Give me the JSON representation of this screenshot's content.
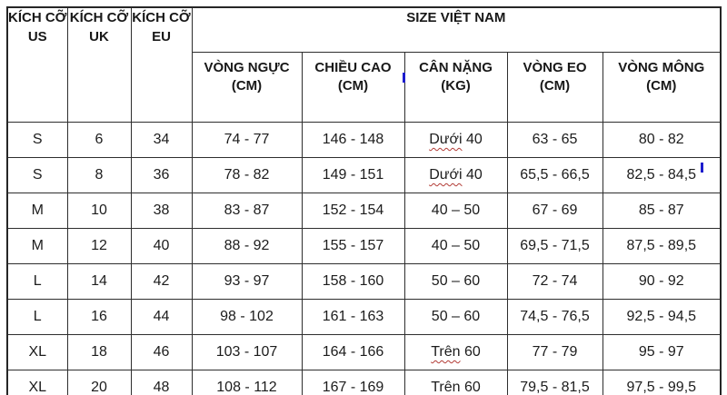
{
  "document": {
    "type": "size-chart-table",
    "colors": {
      "cursor_blue": "#1c1ccd",
      "spellcheck_red": "#b23b35",
      "border": "#2e2e2e",
      "text": "#1c1c1c",
      "background": "#ffffff"
    }
  },
  "table": {
    "headers": {
      "us": "KÍCH CỠ US",
      "uk": "KÍCH CỠ UK",
      "eu": "KÍCH CỠ EU",
      "group": "SIZE VIỆT NAM",
      "sub": [
        {
          "line1": "VÒNG NGỰC",
          "line2": "(CM)"
        },
        {
          "line1": "CHIỀU CAO",
          "line2": "(CM)"
        },
        {
          "line1": "CÂN NẶNG",
          "line2": "(KG)"
        },
        {
          "line1": "VÒNG EO",
          "line2": "(CM)"
        },
        {
          "line1": "VÒNG MÔNG",
          "line2": "(CM)"
        }
      ]
    },
    "rows": [
      [
        "S",
        "6",
        "34",
        "74 - 77",
        "146 - 148",
        "Dưới 40",
        "63 - 65",
        "80 - 82"
      ],
      [
        "S",
        "8",
        "36",
        "78 - 82",
        "149 - 151",
        "Dưới 40",
        "65,5 - 66,5",
        "82,5 - 84,5"
      ],
      [
        "M",
        "10",
        "38",
        "83 - 87",
        "152 - 154",
        "40 – 50",
        "67 - 69",
        "85 - 87"
      ],
      [
        "M",
        "12",
        "40",
        "88 - 92",
        "155 - 157",
        "40 – 50",
        "69,5 - 71,5",
        "87,5 - 89,5"
      ],
      [
        "L",
        "14",
        "42",
        "93 - 97",
        "158 - 160",
        "50 – 60",
        "72 - 74",
        "90 - 92"
      ],
      [
        "L",
        "16",
        "44",
        "98 - 102",
        "161 - 163",
        "50 – 60",
        "74,5 - 76,5",
        "92,5 - 94,5"
      ],
      [
        "XL",
        "18",
        "46",
        "103 - 107",
        "164 - 166",
        "Trên 60",
        "77 - 79",
        "95 - 97"
      ],
      [
        "XL",
        "20",
        "48",
        "108 - 112",
        "167 - 169",
        "Trên 60",
        "79,5 - 81,5",
        "97,5 - 99,5"
      ]
    ],
    "spellcheck_marks": [
      {
        "row": 0,
        "col": 5,
        "word": "Dưới"
      },
      {
        "row": 1,
        "col": 5,
        "word": "Dưới"
      },
      {
        "row": 6,
        "col": 5,
        "word": "Trên"
      },
      {
        "row": 7,
        "col": 5,
        "word": "Trên"
      }
    ]
  }
}
